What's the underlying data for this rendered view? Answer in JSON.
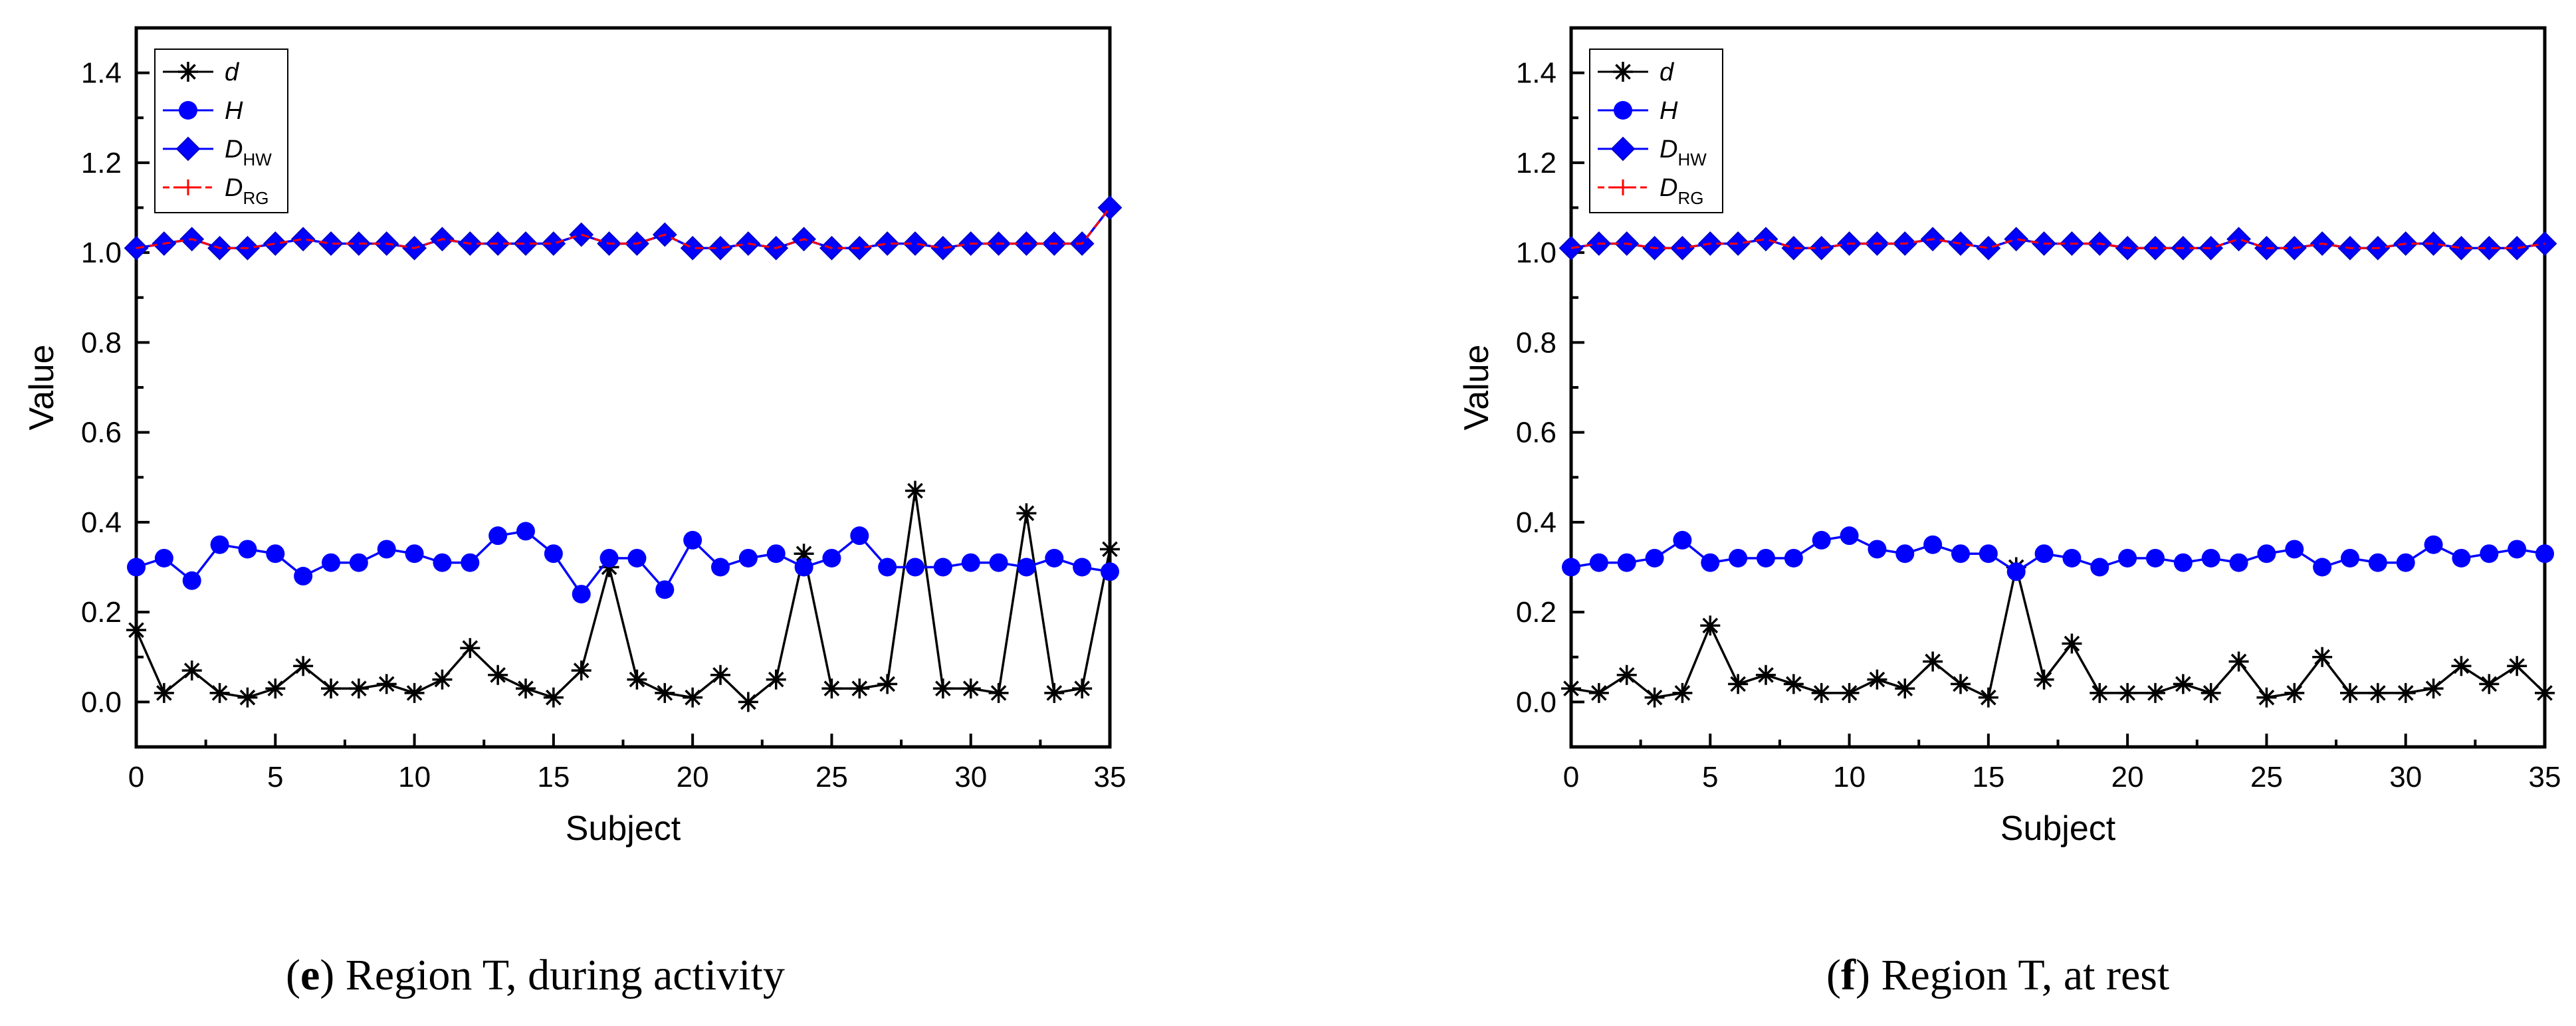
{
  "chart_data": [
    {
      "type": "line",
      "xlabel": "Subject",
      "ylabel": "Value",
      "xlim": [
        0,
        35
      ],
      "ylim": [
        -0.1,
        1.5
      ],
      "xticks": [
        0,
        5,
        10,
        15,
        20,
        25,
        30,
        35
      ],
      "yticks": [
        0.0,
        0.2,
        0.4,
        0.6,
        0.8,
        1.0,
        1.2,
        1.4
      ],
      "x": [
        0,
        1,
        2,
        3,
        4,
        5,
        6,
        7,
        8,
        9,
        10,
        11,
        12,
        13,
        14,
        15,
        16,
        17,
        18,
        19,
        20,
        21,
        22,
        23,
        24,
        25,
        26,
        27,
        28,
        29,
        30,
        31,
        32,
        33,
        34,
        35
      ],
      "series": [
        {
          "name": "d",
          "sub": "",
          "color": "#000000",
          "marker": "asterisk",
          "dash": false,
          "values": [
            0.16,
            0.02,
            0.07,
            0.02,
            0.01,
            0.03,
            0.08,
            0.03,
            0.03,
            0.04,
            0.02,
            0.05,
            0.12,
            0.06,
            0.03,
            0.01,
            0.07,
            0.3,
            0.05,
            0.02,
            0.01,
            0.06,
            0.0,
            0.05,
            0.33,
            0.03,
            0.03,
            0.04,
            0.47,
            0.03,
            0.03,
            0.02,
            0.42,
            0.02,
            0.03,
            0.34
          ]
        },
        {
          "name": "H",
          "sub": "",
          "color": "#0000ff",
          "marker": "circle",
          "dash": false,
          "values": [
            0.3,
            0.32,
            0.27,
            0.35,
            0.34,
            0.33,
            0.28,
            0.31,
            0.31,
            0.34,
            0.33,
            0.31,
            0.31,
            0.37,
            0.38,
            0.33,
            0.24,
            0.32,
            0.32,
            0.25,
            0.36,
            0.3,
            0.32,
            0.33,
            0.3,
            0.32,
            0.37,
            0.3,
            0.3,
            0.3,
            0.31,
            0.31,
            0.3,
            0.32,
            0.3,
            0.29
          ]
        },
        {
          "name": "D",
          "sub": "HW",
          "color": "#0000ff",
          "marker": "diamond",
          "dash": false,
          "values": [
            1.01,
            1.02,
            1.03,
            1.01,
            1.01,
            1.02,
            1.03,
            1.02,
            1.02,
            1.02,
            1.01,
            1.03,
            1.02,
            1.02,
            1.02,
            1.02,
            1.04,
            1.02,
            1.02,
            1.04,
            1.01,
            1.01,
            1.02,
            1.01,
            1.03,
            1.01,
            1.01,
            1.02,
            1.02,
            1.01,
            1.02,
            1.02,
            1.02,
            1.02,
            1.02,
            1.1
          ]
        },
        {
          "name": "D",
          "sub": "RG",
          "color": "#ff0000",
          "marker": "plus",
          "dash": true,
          "values": [
            1.01,
            1.02,
            1.03,
            1.01,
            1.01,
            1.02,
            1.03,
            1.02,
            1.02,
            1.02,
            1.01,
            1.03,
            1.02,
            1.02,
            1.02,
            1.02,
            1.04,
            1.02,
            1.02,
            1.04,
            1.01,
            1.01,
            1.02,
            1.01,
            1.03,
            1.01,
            1.01,
            1.02,
            1.02,
            1.01,
            1.02,
            1.02,
            1.02,
            1.02,
            1.02,
            1.1
          ]
        }
      ]
    },
    {
      "type": "line",
      "xlabel": "Subject",
      "ylabel": "Value",
      "xlim": [
        0,
        35
      ],
      "ylim": [
        -0.1,
        1.5
      ],
      "xticks": [
        0,
        5,
        10,
        15,
        20,
        25,
        30,
        35
      ],
      "yticks": [
        0.0,
        0.2,
        0.4,
        0.6,
        0.8,
        1.0,
        1.2,
        1.4
      ],
      "x": [
        0,
        1,
        2,
        3,
        4,
        5,
        6,
        7,
        8,
        9,
        10,
        11,
        12,
        13,
        14,
        15,
        16,
        17,
        18,
        19,
        20,
        21,
        22,
        23,
        24,
        25,
        26,
        27,
        28,
        29,
        30,
        31,
        32,
        33,
        34,
        35
      ],
      "series": [
        {
          "name": "d",
          "sub": "",
          "color": "#000000",
          "marker": "asterisk",
          "dash": false,
          "values": [
            0.03,
            0.02,
            0.06,
            0.01,
            0.02,
            0.17,
            0.04,
            0.06,
            0.04,
            0.02,
            0.02,
            0.05,
            0.03,
            0.09,
            0.04,
            0.01,
            0.3,
            0.05,
            0.13,
            0.02,
            0.02,
            0.02,
            0.04,
            0.02,
            0.09,
            0.01,
            0.02,
            0.1,
            0.02,
            0.02,
            0.02,
            0.03,
            0.08,
            0.04,
            0.08,
            0.02
          ]
        },
        {
          "name": "H",
          "sub": "",
          "color": "#0000ff",
          "marker": "circle",
          "dash": false,
          "values": [
            0.3,
            0.31,
            0.31,
            0.32,
            0.36,
            0.31,
            0.32,
            0.32,
            0.32,
            0.36,
            0.37,
            0.34,
            0.33,
            0.35,
            0.33,
            0.33,
            0.29,
            0.33,
            0.32,
            0.3,
            0.32,
            0.32,
            0.31,
            0.32,
            0.31,
            0.33,
            0.34,
            0.3,
            0.32,
            0.31,
            0.31,
            0.35,
            0.32,
            0.33,
            0.34,
            0.33
          ]
        },
        {
          "name": "D",
          "sub": "HW",
          "color": "#0000ff",
          "marker": "diamond",
          "dash": false,
          "values": [
            1.01,
            1.02,
            1.02,
            1.01,
            1.01,
            1.02,
            1.02,
            1.03,
            1.01,
            1.01,
            1.02,
            1.02,
            1.02,
            1.03,
            1.02,
            1.01,
            1.03,
            1.02,
            1.02,
            1.02,
            1.01,
            1.01,
            1.01,
            1.01,
            1.03,
            1.01,
            1.01,
            1.02,
            1.01,
            1.01,
            1.02,
            1.02,
            1.01,
            1.01,
            1.01,
            1.02
          ]
        },
        {
          "name": "D",
          "sub": "RG",
          "color": "#ff0000",
          "marker": "plus",
          "dash": true,
          "values": [
            1.01,
            1.02,
            1.02,
            1.01,
            1.01,
            1.02,
            1.02,
            1.03,
            1.01,
            1.01,
            1.02,
            1.02,
            1.02,
            1.03,
            1.02,
            1.01,
            1.03,
            1.02,
            1.02,
            1.02,
            1.01,
            1.01,
            1.01,
            1.01,
            1.03,
            1.01,
            1.01,
            1.02,
            1.01,
            1.01,
            1.02,
            1.02,
            1.01,
            1.01,
            1.01,
            1.02
          ]
        }
      ]
    }
  ],
  "captions": [
    {
      "letter": "e",
      "text": "Region T, during activity"
    },
    {
      "letter": "f",
      "text": "Region T, at rest"
    }
  ]
}
